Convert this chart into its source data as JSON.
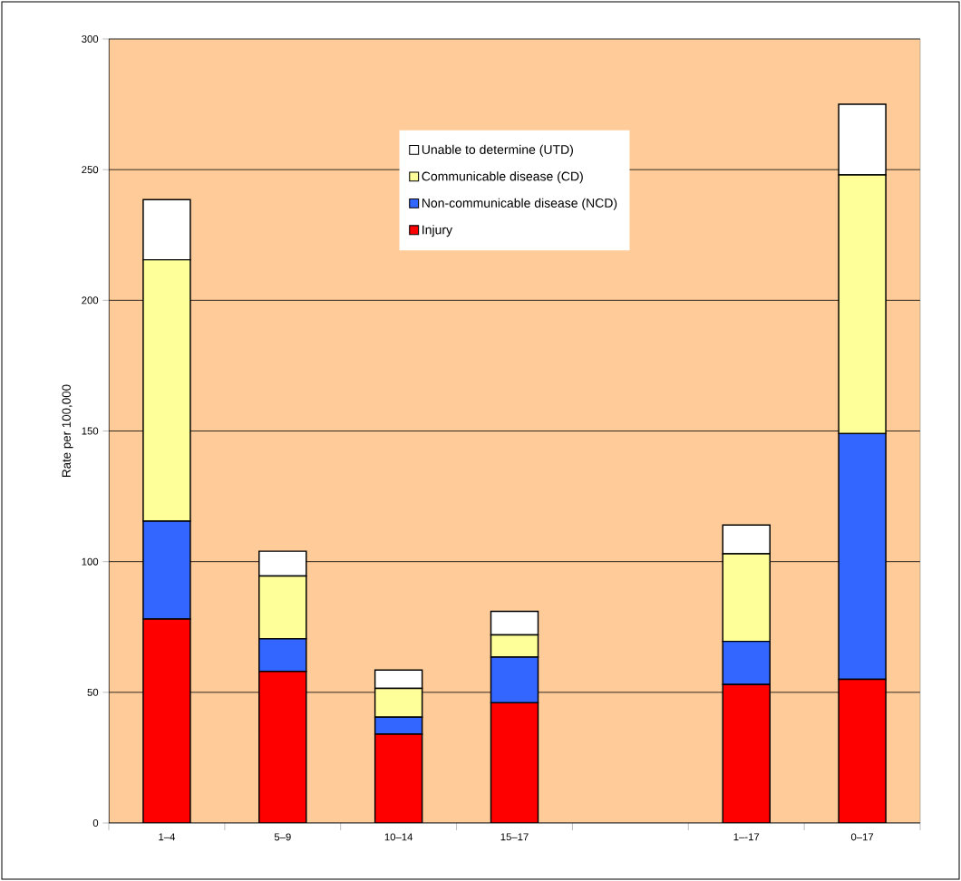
{
  "chart_data": {
    "type": "bar",
    "stacked": true,
    "ylabel": "Rate per 100,000",
    "categories": [
      "1–4",
      "5–9",
      "10–14",
      "15–17",
      null,
      "1–-17",
      "0–17"
    ],
    "series": [
      {
        "name": "Injury",
        "color": "#ff0000",
        "values": [
          78,
          58,
          34,
          46,
          null,
          53,
          55
        ]
      },
      {
        "name": "Non-communicable disease (NCD)",
        "color": "#3366ff",
        "values": [
          37.5,
          12.5,
          6.5,
          17.5,
          null,
          16.5,
          94
        ]
      },
      {
        "name": "Communicable disease (CD)",
        "color": "#ffff99",
        "values": [
          100,
          24,
          11,
          8.5,
          null,
          33.5,
          99
        ]
      },
      {
        "name": "Unable to determine (UTD)",
        "color": "#ffffff",
        "values": [
          23,
          9.5,
          7,
          9,
          null,
          11,
          27
        ]
      }
    ],
    "ylim": [
      0,
      300
    ],
    "yticks": [
      0,
      50,
      100,
      150,
      200,
      250,
      300
    ],
    "grid": "y",
    "legend": "top"
  }
}
